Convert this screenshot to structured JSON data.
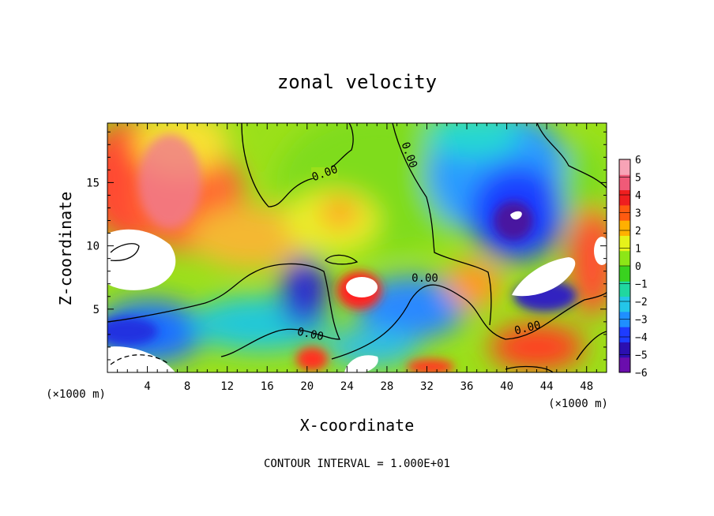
{
  "chart_data": {
    "type": "heatmap",
    "title": "zonal velocity",
    "xlabel": "X-coordinate",
    "ylabel": "Z-coordinate",
    "x_unit_label": "(×1000 m)",
    "z_unit_label": "(×1000 m)",
    "xlim": [
      0,
      50
    ],
    "ylim": [
      0,
      19.7
    ],
    "x_ticks": [
      4,
      8,
      12,
      16,
      20,
      24,
      28,
      32,
      36,
      40,
      44,
      48
    ],
    "y_ticks": [
      5,
      10,
      15
    ],
    "colorbar": {
      "levels": [
        6,
        5,
        4,
        3,
        2,
        1,
        0,
        -1,
        -2,
        -3,
        -4,
        -5,
        -6
      ],
      "range": [
        -6,
        6
      ],
      "colors": [
        "#6a0dad",
        "#2b0fb0",
        "#1e3cff",
        "#1f8fff",
        "#24c6e8",
        "#20d7a0",
        "#39d21f",
        "#8de617",
        "#e6f21a",
        "#ffb000",
        "#ff5a10",
        "#ef1f1f",
        "#f05a78",
        "#f7a3b6"
      ]
    },
    "contour_labels": [
      "0.00",
      "0.00",
      "0.00",
      "0.00",
      "0.00"
    ],
    "contour_interval_text": "CONTOUR INTERVAL = 1.000E+01"
  }
}
